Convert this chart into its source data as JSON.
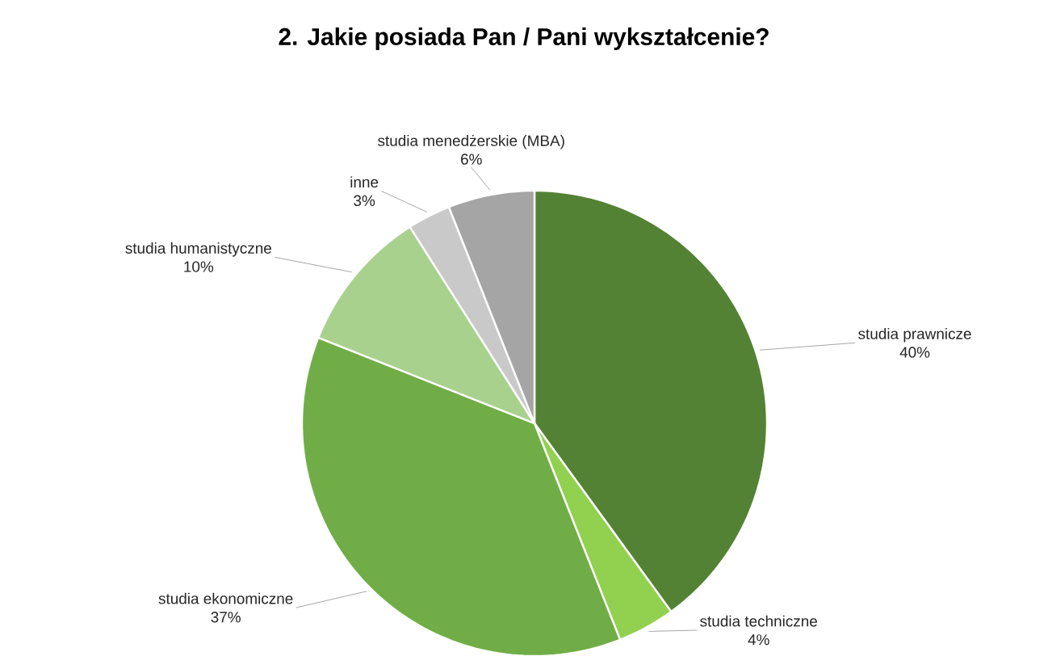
{
  "chart_data": {
    "type": "pie",
    "title": "2. Jakie posiada Pan / Pani wykształcenie?",
    "categories": [
      "studia prawnicze",
      "studia techniczne",
      "studia ekonomiczne",
      "studia humanistyczne",
      "inne",
      "studia menedżerskie (MBA)"
    ],
    "values": [
      40,
      4,
      37,
      10,
      3,
      6
    ],
    "value_labels": [
      "40%",
      "4%",
      "37%",
      "10%",
      "3%",
      "6%"
    ],
    "colors": [
      "#548235",
      "#92d050",
      "#70ad47",
      "#a9d18e",
      "#c9c9c9",
      "#a5a5a5"
    ]
  }
}
